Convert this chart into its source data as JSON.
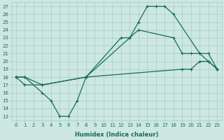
{
  "xlabel": "Humidex (Indice chaleur)",
  "bg_color": "#cce8e0",
  "grid_color": "#a8ccc4",
  "line_color": "#1a6b5a",
  "xlim": [
    -0.5,
    23.5
  ],
  "ylim": [
    12.5,
    27.5
  ],
  "xticks": [
    0,
    1,
    2,
    3,
    4,
    5,
    6,
    7,
    8,
    9,
    10,
    11,
    12,
    13,
    14,
    15,
    16,
    17,
    18,
    19,
    20,
    21,
    22,
    23
  ],
  "yticks": [
    13,
    14,
    15,
    16,
    17,
    18,
    19,
    20,
    21,
    22,
    23,
    24,
    25,
    26,
    27
  ],
  "curve1_x": [
    0,
    1,
    3,
    4,
    5,
    6,
    7,
    8,
    12,
    13,
    14,
    15,
    16,
    17,
    18,
    21,
    22,
    23
  ],
  "curve1_y": [
    18,
    18,
    16,
    15,
    13,
    13,
    15,
    18,
    23,
    23,
    25,
    27,
    27,
    27,
    26,
    21,
    20,
    19
  ],
  "curve2_x": [
    0,
    1,
    3,
    8,
    13,
    14,
    18,
    19,
    20,
    21,
    22,
    23
  ],
  "curve2_y": [
    18,
    18,
    17,
    18,
    23,
    24,
    23,
    21,
    21,
    21,
    21,
    19
  ],
  "curve3_x": [
    0,
    1,
    3,
    8,
    19,
    20,
    21,
    22,
    23
  ],
  "curve3_y": [
    18,
    17,
    17,
    18,
    19,
    19,
    20,
    20,
    19
  ]
}
